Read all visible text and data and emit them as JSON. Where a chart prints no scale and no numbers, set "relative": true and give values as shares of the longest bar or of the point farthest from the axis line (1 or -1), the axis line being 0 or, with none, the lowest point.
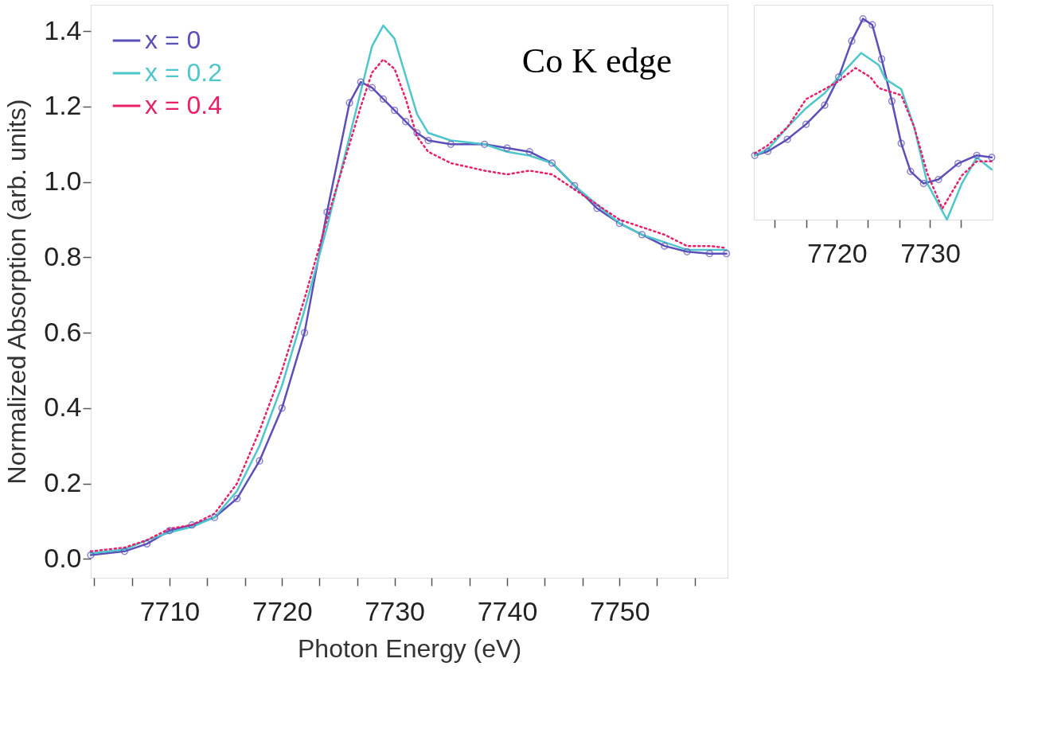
{
  "chart_data": [
    {
      "type": "line",
      "xlabel": "Photon Energy (eV)",
      "ylabel": "Normalized Absorption (arb. units)",
      "xlim": [
        7703,
        7759.6
      ],
      "ylim": [
        -0.05,
        1.47
      ],
      "xticks": [
        {
          "value": 7703.3,
          "label": null
        },
        {
          "value": 7706.7,
          "label": null
        },
        7710,
        {
          "value": 7713.3,
          "label": null
        },
        {
          "value": 7716.7,
          "label": null
        },
        7720,
        {
          "value": 7723.3,
          "label": null
        },
        {
          "value": 7726.7,
          "label": null
        },
        7730,
        {
          "value": 7733.3,
          "label": null
        },
        {
          "value": 7736.7,
          "label": null
        },
        7740,
        {
          "value": 7743.3,
          "label": null
        },
        {
          "value": 7746.7,
          "label": null
        },
        7750,
        {
          "value": 7753.3,
          "label": null
        },
        {
          "value": 7756.7,
          "label": null
        }
      ],
      "yticks": [
        {
          "value": 0,
          "label": "0.0"
        },
        {
          "value": 0.2,
          "label": "0.2"
        },
        {
          "value": 0.4,
          "label": "0.4"
        },
        {
          "value": 0.6,
          "label": "0.6"
        },
        {
          "value": 0.8,
          "label": "0.8"
        },
        {
          "value": 1.0,
          "label": "1.0"
        },
        {
          "value": 1.2,
          "label": "1.2"
        },
        {
          "value": 1.4,
          "label": "1.4"
        }
      ],
      "grid": false,
      "legend": "top left",
      "annotations": [
        "Co K edge"
      ],
      "x": [
        7703,
        7706,
        7708,
        7710,
        7712,
        7714,
        7716,
        7718,
        7720,
        7722,
        7724,
        7726,
        7727,
        7728,
        7729,
        7730,
        7731,
        7732,
        7733,
        7735,
        7738,
        7740,
        7742,
        7744,
        7746,
        7748,
        7750,
        7752,
        7754,
        7756,
        7758,
        7759.5
      ],
      "series": [
        {
          "name": "x = 0",
          "color": "#5b4fb8",
          "marker": "circle",
          "line_style": "solid",
          "values": [
            0.01,
            0.02,
            0.04,
            0.075,
            0.09,
            0.11,
            0.16,
            0.26,
            0.4,
            0.6,
            0.92,
            1.21,
            1.265,
            1.25,
            1.22,
            1.19,
            1.16,
            1.13,
            1.11,
            1.1,
            1.1,
            1.09,
            1.08,
            1.05,
            0.99,
            0.93,
            0.89,
            0.86,
            0.83,
            0.815,
            0.81,
            0.81
          ]
        },
        {
          "name": "x = 0.2",
          "color": "#4fc6cc",
          "marker": "none",
          "line_style": "solid",
          "values": [
            0.015,
            0.025,
            0.05,
            0.07,
            0.085,
            0.11,
            0.18,
            0.3,
            0.46,
            0.66,
            0.88,
            1.12,
            1.24,
            1.36,
            1.415,
            1.38,
            1.28,
            1.18,
            1.13,
            1.11,
            1.1,
            1.08,
            1.07,
            1.05,
            0.99,
            0.94,
            0.89,
            0.86,
            0.84,
            0.82,
            0.82,
            0.82
          ]
        },
        {
          "name": "x = 0.4",
          "color": "#e8206a",
          "marker": "none",
          "line_style": "dotted",
          "values": [
            0.02,
            0.03,
            0.05,
            0.08,
            0.09,
            0.12,
            0.2,
            0.34,
            0.5,
            0.69,
            0.9,
            1.1,
            1.2,
            1.29,
            1.325,
            1.3,
            1.22,
            1.12,
            1.08,
            1.05,
            1.03,
            1.02,
            1.03,
            1.02,
            0.98,
            0.94,
            0.9,
            0.88,
            0.86,
            0.83,
            0.83,
            0.825
          ]
        }
      ]
    },
    {
      "type": "line",
      "relative": true,
      "grid": false,
      "legend": false,
      "xlim": [
        7711.1,
        7736.7
      ],
      "xticks": [
        {
          "value": 7713.3,
          "label": null
        },
        {
          "value": 7716.7,
          "label": null
        },
        7720,
        {
          "value": 7723.3,
          "label": null
        },
        {
          "value": 7726.7,
          "label": null
        },
        7730,
        {
          "value": 7733.3,
          "label": null
        }
      ],
      "series": [
        {
          "color": "#5b4fb8",
          "marker": "circle",
          "line_style": "solid",
          "x": [
            7711.2,
            7712.6,
            7714.7,
            7716.7,
            7718.7,
            7720.2,
            7721.6,
            7722.8,
            7723.8,
            7724.8,
            7725.9,
            7726.9,
            7727.9,
            7729.3,
            7730.9,
            7733.0,
            7735.0,
            7736.6
          ],
          "values": [
            0.32,
            0.34,
            0.4,
            0.475,
            0.57,
            0.71,
            0.89,
            1.0,
            0.97,
            0.8,
            0.59,
            0.38,
            0.24,
            0.18,
            0.2,
            0.28,
            0.32,
            0.31
          ]
        },
        {
          "color": "#4fc6cc",
          "marker": "none",
          "line_style": "solid",
          "x": [
            7711.2,
            7712.6,
            7714.7,
            7716.7,
            7718.7,
            7720.2,
            7722.6,
            7724.5,
            7725.2,
            7726.9,
            7728.3,
            7729.7,
            7731.8,
            7733.4,
            7735.0,
            7736.6
          ],
          "values": [
            0.32,
            0.35,
            0.46,
            0.555,
            0.63,
            0.71,
            0.83,
            0.77,
            0.7,
            0.65,
            0.46,
            0.18,
            0,
            0.18,
            0.31,
            0.25
          ]
        },
        {
          "color": "#e8206a",
          "marker": "none",
          "line_style": "dotted",
          "x": [
            7711.2,
            7712.6,
            7714.7,
            7716.7,
            7718.7,
            7720.2,
            7722.0,
            7723.6,
            7724.5,
            7726.9,
            7728.3,
            7729.7,
            7731.3,
            7733.4,
            7735.0,
            7736.6
          ],
          "values": [
            0.33,
            0.37,
            0.46,
            0.6,
            0.65,
            0.69,
            0.755,
            0.71,
            0.655,
            0.62,
            0.46,
            0.23,
            0.055,
            0.22,
            0.29,
            0.29
          ]
        }
      ]
    }
  ]
}
